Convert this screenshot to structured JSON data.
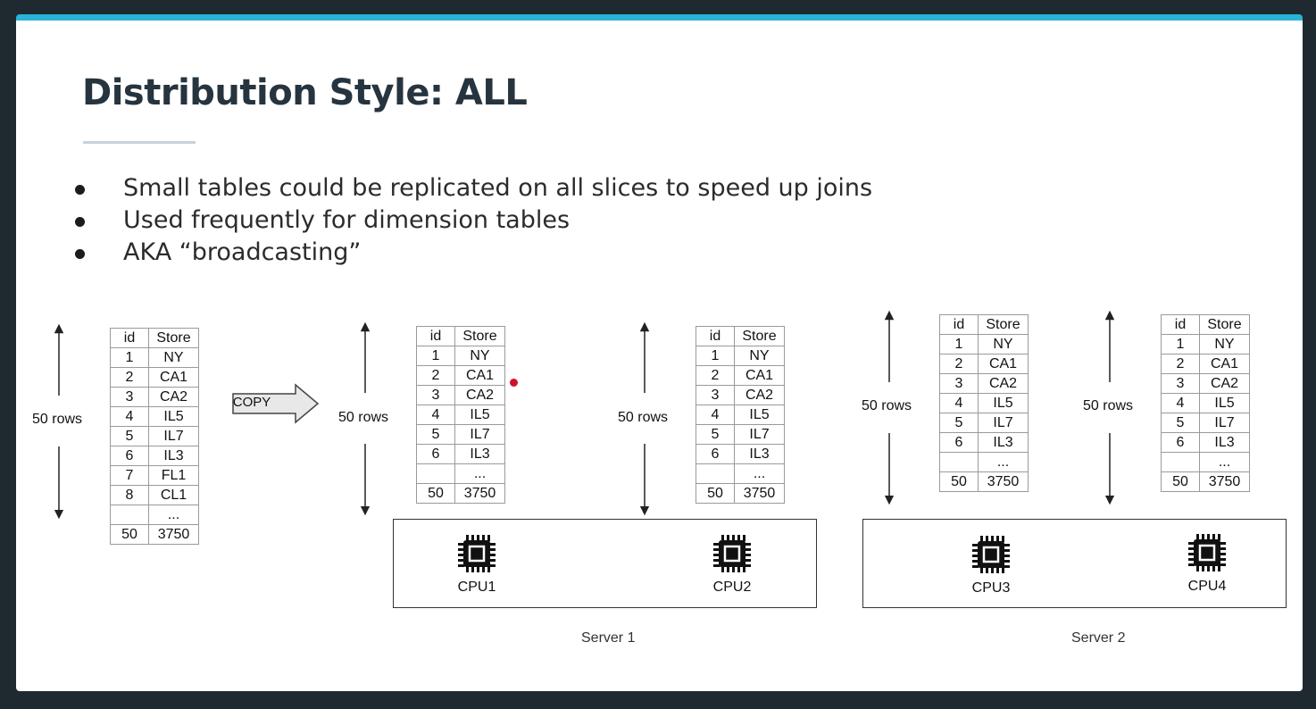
{
  "title": "Distribution Style: ALL",
  "bullets": [
    "Small tables could be replicated on all slices to speed up joins",
    "Used frequently for dimension tables",
    "AKA “broadcasting”"
  ],
  "rows_label": "50 rows",
  "copy_label": "COPY",
  "source_table": {
    "headers": [
      "id",
      "Store"
    ],
    "rows": [
      [
        "1",
        "NY"
      ],
      [
        "2",
        "CA1"
      ],
      [
        "3",
        "CA2"
      ],
      [
        "4",
        "IL5"
      ],
      [
        "5",
        "IL7"
      ],
      [
        "6",
        "IL3"
      ],
      [
        "7",
        "FL1"
      ],
      [
        "8",
        "CL1"
      ],
      [
        "",
        "..."
      ],
      [
        "50",
        "3750"
      ]
    ]
  },
  "slice_table": {
    "headers": [
      "id",
      "Store"
    ],
    "rows": [
      [
        "1",
        "NY"
      ],
      [
        "2",
        "CA1"
      ],
      [
        "3",
        "CA2"
      ],
      [
        "4",
        "IL5"
      ],
      [
        "5",
        "IL7"
      ],
      [
        "6",
        "IL3"
      ],
      [
        "",
        "..."
      ],
      [
        "50",
        "3750"
      ]
    ]
  },
  "servers": [
    {
      "label": "Server 1",
      "cpus": [
        "CPU1",
        "CPU2"
      ]
    },
    {
      "label": "Server 2",
      "cpus": [
        "CPU3",
        "CPU4"
      ]
    }
  ],
  "colors": {
    "accent": "#2ab3d6",
    "title": "#26343f",
    "pointer": "#d01030"
  }
}
